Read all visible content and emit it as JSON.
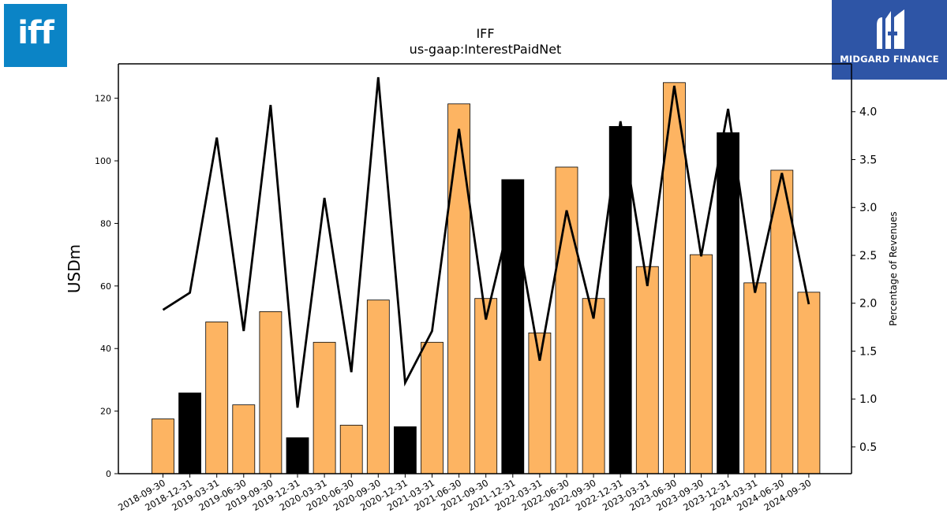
{
  "logos": {
    "left_text": "iff",
    "right_text": "MIDGARD FINANCE"
  },
  "chart_data": {
    "type": "bar",
    "title": "IFF",
    "subtitle": "us-gaap:InterestPaidNet",
    "ylabel": "USDm",
    "y2label": "Percentage of Revenues",
    "ylim": [
      0,
      131
    ],
    "y2lim": [
      0.22,
      4.5
    ],
    "yticks": [
      0,
      20,
      40,
      60,
      80,
      100,
      120
    ],
    "y2ticks": [
      "0.5",
      "1.0",
      "1.5",
      "2.0",
      "2.5",
      "3.0",
      "3.5",
      "4.0"
    ],
    "grid": false,
    "categories": [
      "2018-09-30",
      "2018-12-31",
      "2019-03-31",
      "2019-06-30",
      "2019-09-30",
      "2019-12-31",
      "2020-03-31",
      "2020-06-30",
      "2020-09-30",
      "2020-12-31",
      "2021-03-31",
      "2021-06-30",
      "2021-09-30",
      "2021-12-31",
      "2022-03-31",
      "2022-06-30",
      "2022-09-30",
      "2022-12-31",
      "2023-03-31",
      "2023-06-30",
      "2023-09-30",
      "2023-12-31",
      "2024-03-31",
      "2024-06-30",
      "2024-09-30"
    ],
    "series": [
      {
        "kind": "bar",
        "values": [
          17.5,
          25.8,
          48.5,
          22.0,
          51.8,
          11.5,
          42.0,
          15.5,
          55.5,
          15.0,
          42.0,
          118.2,
          56.0,
          94.0,
          45.0,
          98.0,
          56.0,
          111.0,
          66.2,
          125.0,
          70.0,
          109.0,
          61.0,
          97.0,
          58.0
        ],
        "highlight": [
          false,
          true,
          false,
          false,
          false,
          true,
          false,
          false,
          false,
          true,
          false,
          false,
          false,
          true,
          false,
          false,
          false,
          true,
          false,
          false,
          false,
          true,
          false,
          false,
          false
        ],
        "color": "#fdb462",
        "highlight_color": "#000000"
      },
      {
        "kind": "line",
        "axis": "right",
        "values": [
          1.93,
          2.11,
          3.73,
          1.71,
          4.07,
          0.91,
          3.1,
          1.28,
          4.36,
          1.17,
          1.71,
          3.82,
          1.83,
          3.0,
          1.4,
          2.97,
          1.84,
          3.9,
          2.18,
          4.27,
          2.49,
          4.03,
          2.11,
          3.36,
          1.99
        ],
        "color": "#000000"
      }
    ]
  }
}
